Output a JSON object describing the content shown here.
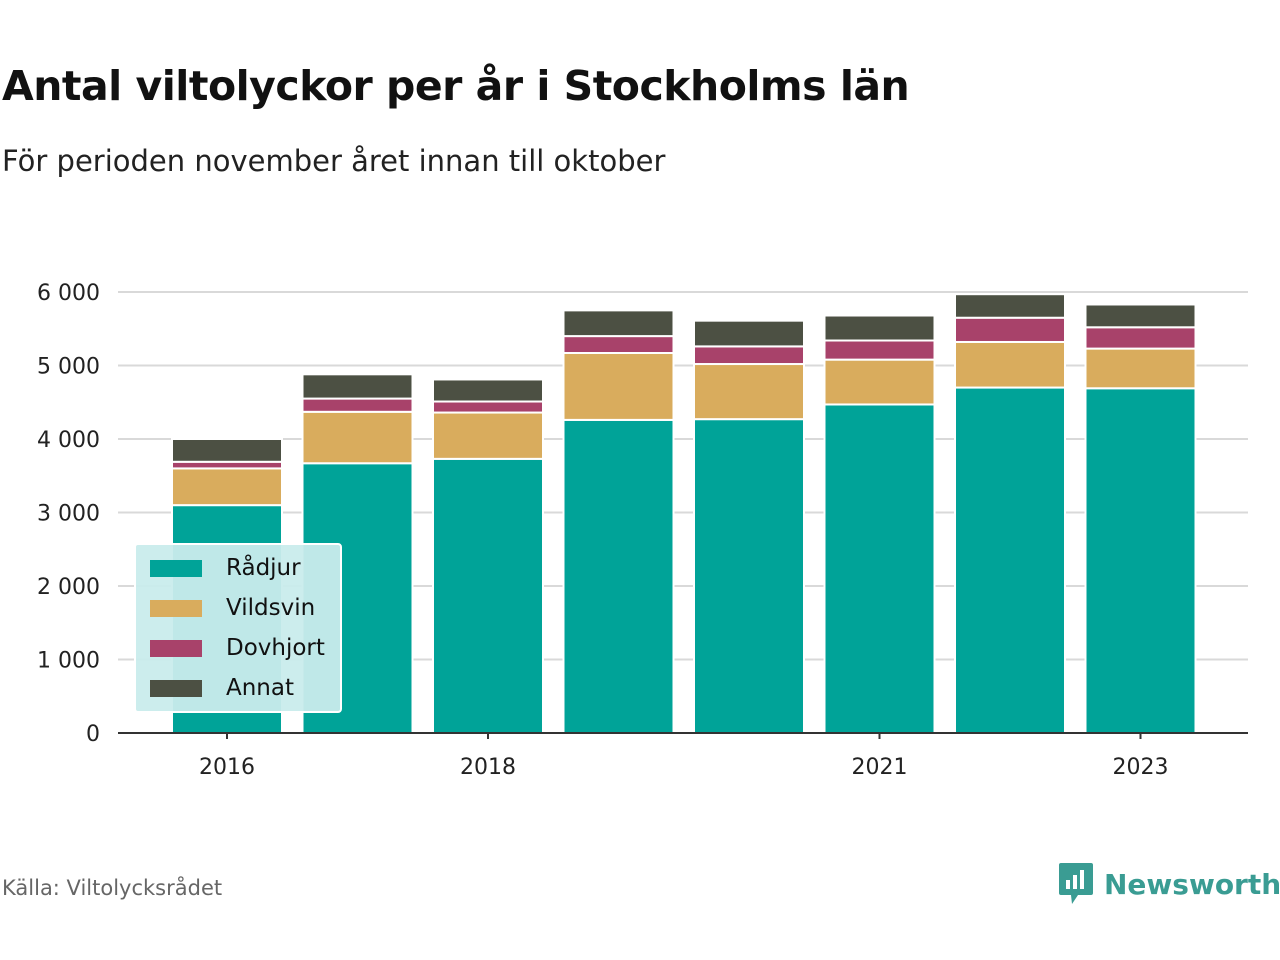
{
  "title": "Antal viltolyckor per år i Stockholms län",
  "subtitle": "För perioden november året innan till oktober",
  "source": "Källa: Viltolycksrådet",
  "brand": {
    "name": "Newsworthy",
    "icon": "newsworthy-logo-icon"
  },
  "colors": {
    "Rådjur": "#00a398",
    "Vildsvin": "#d9ac5d",
    "Dovhjort": "#a8426a",
    "Annat": "#4c5043",
    "grid": "#d9d9d9",
    "axis": "#333333",
    "brand": "#3a9c93",
    "legend_bg": "#c9ecec"
  },
  "legend": {
    "items": [
      {
        "label": "Rådjur",
        "color": "#00a398"
      },
      {
        "label": "Vildsvin",
        "color": "#d9ac5d"
      },
      {
        "label": "Dovhjort",
        "color": "#a8426a"
      },
      {
        "label": "Annat",
        "color": "#4c5043"
      }
    ]
  },
  "chart_data": {
    "type": "bar",
    "stacked": true,
    "title": "Antal viltolyckor per år i Stockholms län",
    "subtitle": "För perioden november året innan till oktober",
    "xlabel": "",
    "ylabel": "",
    "categories": [
      "2016",
      "2017",
      "2018",
      "2019",
      "2020",
      "2021",
      "2022",
      "2023"
    ],
    "x_tick_labels": [
      "2016",
      "",
      "2018",
      "",
      "",
      "2021",
      "",
      "2023"
    ],
    "ylim": [
      0,
      6000
    ],
    "y_ticks": [
      0,
      1000,
      2000,
      3000,
      4000,
      5000,
      6000
    ],
    "y_tick_labels": [
      "0",
      "1 000",
      "2 000",
      "3 000",
      "4 000",
      "5 000",
      "6 000"
    ],
    "grid": true,
    "legend_position": "bottom-left",
    "series": [
      {
        "name": "Rådjur",
        "values": [
          3100,
          3670,
          3730,
          4260,
          4270,
          4470,
          4700,
          4690
        ]
      },
      {
        "name": "Vildsvin",
        "values": [
          500,
          700,
          630,
          910,
          750,
          610,
          620,
          540
        ]
      },
      {
        "name": "Dovhjort",
        "values": [
          90,
          180,
          150,
          230,
          240,
          260,
          330,
          290
        ]
      },
      {
        "name": "Annat",
        "values": [
          310,
          330,
          300,
          350,
          350,
          340,
          320,
          310
        ]
      }
    ]
  }
}
